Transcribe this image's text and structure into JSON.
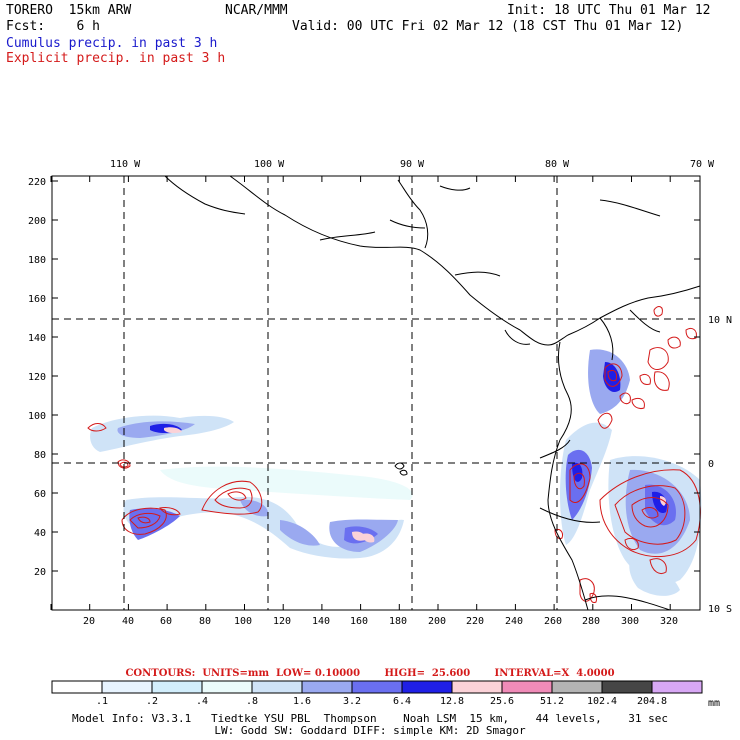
{
  "header": {
    "model": "TORERO  15km ARW",
    "center": "NCAR/MMM",
    "init": "Init: 18 UTC Thu 01 Mar 12",
    "fcst": "Fcst:    6 h",
    "valid": "Valid: 00 UTC Fri 02 Mar 12 (18 CST Thu 01 Mar 12)",
    "legend_cumulus": "Cumulus precip. in past 3 h",
    "legend_explicit": "Explicit precip. in past 3 h",
    "color_cumulus": "#1a1acc",
    "color_explicit": "#d41a1a"
  },
  "map": {
    "lon_labels": [
      "110 W",
      "100 W",
      "90 W",
      "80 W",
      "70 W"
    ],
    "lat_labels": [
      "10 N",
      "0",
      "10 S"
    ],
    "x_ticks": [
      "20",
      "40",
      "60",
      "80",
      "100",
      "120",
      "140",
      "160",
      "180",
      "200",
      "220",
      "240",
      "260",
      "280",
      "300",
      "320"
    ],
    "y_ticks": [
      "20",
      "40",
      "60",
      "80",
      "100",
      "120",
      "140",
      "160",
      "180",
      "200",
      "220"
    ]
  },
  "contours_line": "CONTOURS:  UNITS=mm  LOW= 0.10000       HIGH=  25.600       INTERVAL=X  4.0000",
  "colorbar": {
    "labels": [
      ".1",
      ".2",
      ".4",
      ".8",
      "1.6",
      "3.2",
      "6.4",
      "12.8",
      "25.6",
      "51.2",
      "102.4",
      "204.8"
    ],
    "unit": "mm",
    "colors": [
      "#ffffff",
      "#e8f4ff",
      "#d2eefc",
      "#ebfbfb",
      "#cfe3f7",
      "#9aa9f0",
      "#6a6ff0",
      "#1f1fe6",
      "#fbd2d8",
      "#f08bb8",
      "#b4b4b4",
      "#464646",
      "#d8a8f5"
    ]
  },
  "footer": {
    "line1": "Model Info: V3.3.1   Tiedtke YSU PBL  Thompson    Noah LSM  15 km,    44 levels,    31 sec",
    "line2": "LW: Godd SW: Goddard DIFF: simple KM: 2D Smagor"
  }
}
